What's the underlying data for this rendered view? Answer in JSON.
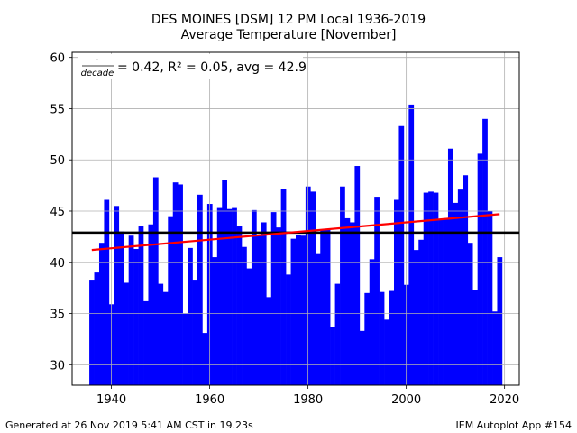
{
  "header": {
    "title_line1": "DES MOINES [DSM] 12 PM Local 1936-2019",
    "title_line2": "Average Temperature [November]"
  },
  "annotation": {
    "fraction_top": "·",
    "fraction_bottom": "decade",
    "text": "= 0.42, R² = 0.05, avg = 42.9"
  },
  "footer": {
    "left": "Generated at 26 Nov 2019 5:41 AM CST in 19.23s",
    "right": "IEM Autoplot App #154"
  },
  "chart_data": {
    "type": "bar",
    "x": [
      1936,
      1937,
      1938,
      1939,
      1940,
      1941,
      1942,
      1943,
      1944,
      1945,
      1946,
      1947,
      1948,
      1949,
      1950,
      1951,
      1952,
      1953,
      1954,
      1955,
      1956,
      1957,
      1958,
      1959,
      1960,
      1961,
      1962,
      1963,
      1964,
      1965,
      1966,
      1967,
      1968,
      1969,
      1970,
      1971,
      1972,
      1973,
      1974,
      1975,
      1976,
      1977,
      1978,
      1979,
      1980,
      1981,
      1982,
      1983,
      1984,
      1985,
      1986,
      1987,
      1988,
      1989,
      1990,
      1991,
      1992,
      1993,
      1994,
      1995,
      1996,
      1997,
      1998,
      1999,
      2000,
      2001,
      2002,
      2003,
      2004,
      2005,
      2006,
      2007,
      2008,
      2009,
      2010,
      2011,
      2012,
      2013,
      2014,
      2015,
      2016,
      2017,
      2018,
      2019
    ],
    "values": [
      38.3,
      39.0,
      41.9,
      46.1,
      35.9,
      45.5,
      43.0,
      38.0,
      42.6,
      41.3,
      43.5,
      36.2,
      43.7,
      48.3,
      37.9,
      37.1,
      44.5,
      47.8,
      47.6,
      35.0,
      41.4,
      38.3,
      46.6,
      33.1,
      45.7,
      40.5,
      45.3,
      48.0,
      45.2,
      45.3,
      43.5,
      41.5,
      39.4,
      45.1,
      42.7,
      43.9,
      36.6,
      44.9,
      43.4,
      47.2,
      38.8,
      42.3,
      42.7,
      42.6,
      47.4,
      46.9,
      40.8,
      43.2,
      43.2,
      33.7,
      37.9,
      47.4,
      44.3,
      43.9,
      49.4,
      33.3,
      37.0,
      40.3,
      46.4,
      37.1,
      34.4,
      37.2,
      46.1,
      53.3,
      37.8,
      55.4,
      41.2,
      42.2,
      46.8,
      46.9,
      46.8,
      44.2,
      44.3,
      51.1,
      45.8,
      47.1,
      48.5,
      41.9,
      37.3,
      50.6,
      54.0,
      45.0,
      35.2,
      40.5
    ],
    "bar_color": "#0000ff",
    "average": 42.9,
    "average_color": "#000000",
    "trend": {
      "slope_per_decade": 0.42,
      "r2": 0.05,
      "start": [
        1936,
        41.2
      ],
      "end": [
        2019,
        44.7
      ],
      "color": "#ff0000"
    },
    "xlim": [
      1932,
      2023
    ],
    "ylim": [
      28,
      60.5
    ],
    "xticks": [
      1940,
      1960,
      1980,
      2000,
      2020
    ],
    "yticks": [
      30,
      35,
      40,
      45,
      50,
      55,
      60
    ],
    "grid": true
  }
}
